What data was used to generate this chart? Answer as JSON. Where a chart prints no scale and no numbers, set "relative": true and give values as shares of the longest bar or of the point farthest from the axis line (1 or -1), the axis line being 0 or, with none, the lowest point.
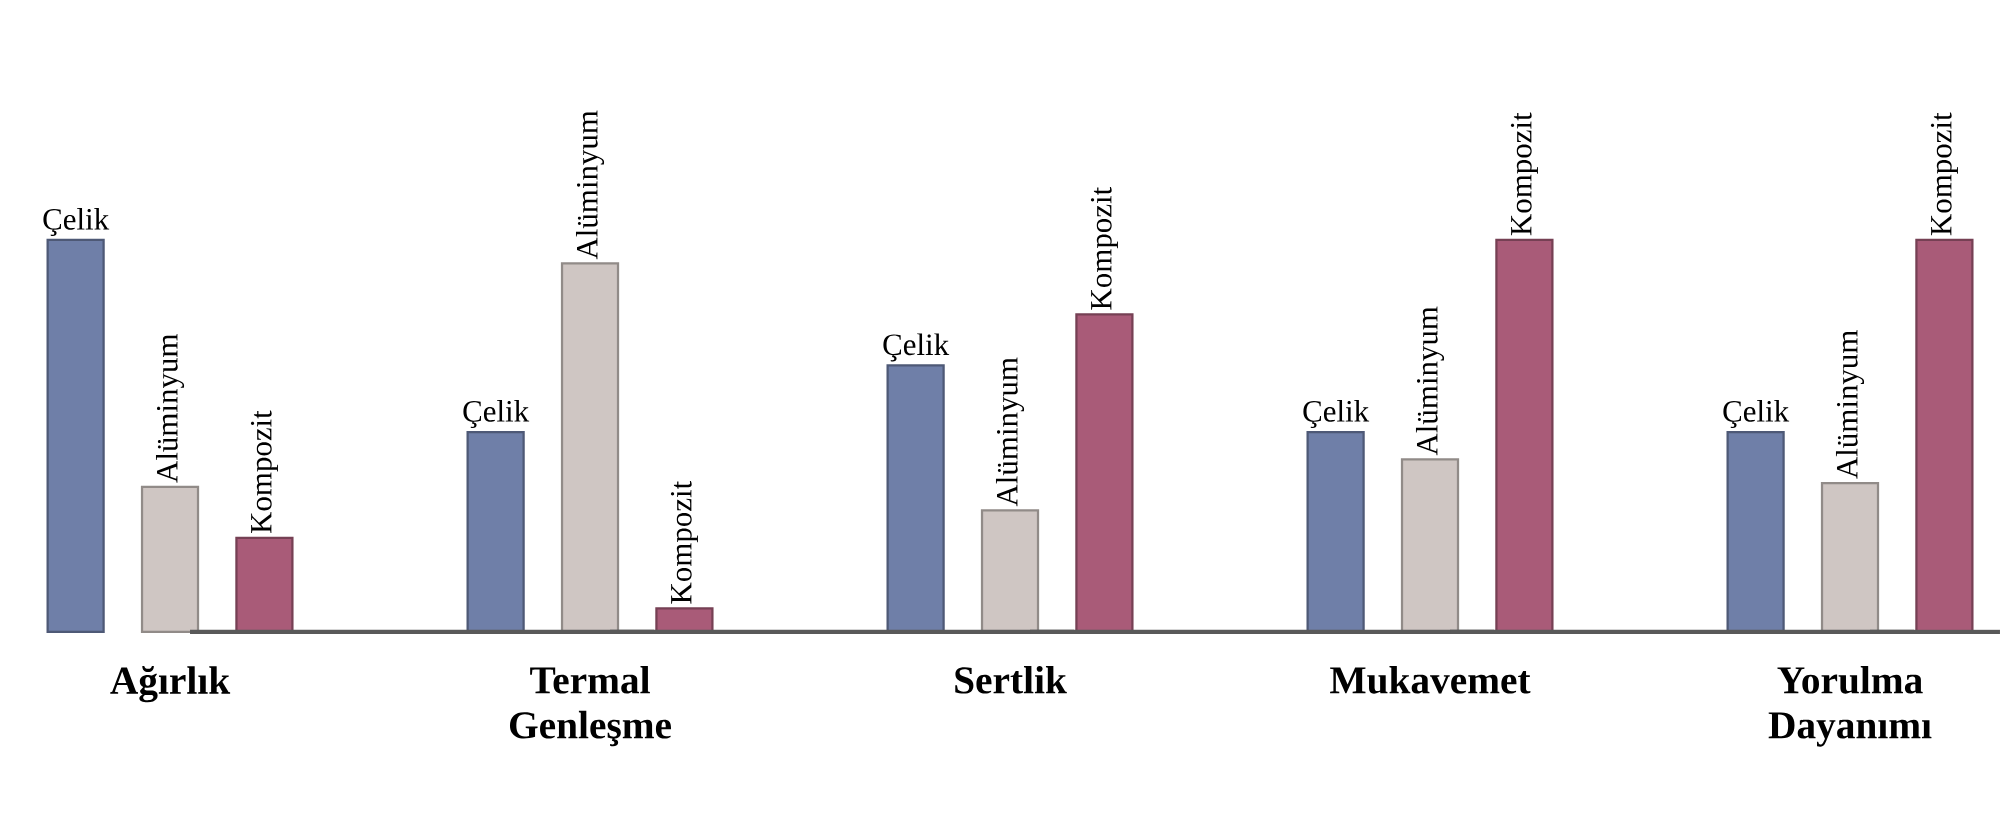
{
  "chart_data": {
    "type": "bar",
    "relative": true,
    "categories": [
      "Ağırlık",
      "Termal Genleşme",
      "Sertlik",
      "Mukavemet",
      "Yorulma Dayanımı"
    ],
    "series": [
      {
        "name": "Çelik",
        "color": "#6f7fa8",
        "values": [
          1,
          0.51,
          0.68,
          0.51,
          0.51
        ]
      },
      {
        "name": "Alüminyum",
        "color": "#cfc6c3",
        "values": [
          0.37,
          0.94,
          0.31,
          0.44,
          0.38
        ]
      },
      {
        "name": "Kompozit",
        "color": "#a95b78",
        "values": [
          0.24,
          0.06,
          0.81,
          1,
          1
        ]
      }
    ]
  }
}
